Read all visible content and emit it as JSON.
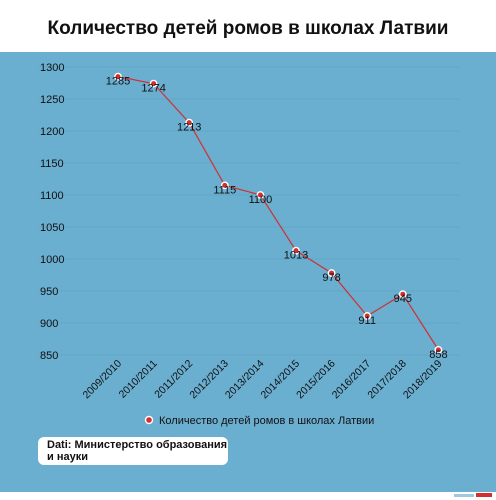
{
  "title": "Количество детей ромов в школах Латвии",
  "source": "Dati: Министерство образования и науки",
  "colors": {
    "background": "#6aaed0",
    "line": "#d32f2f",
    "marker_fill": "#d32f2f",
    "marker_stroke": "#ffffff",
    "text": "#111111",
    "grid": "#5a9ec0"
  },
  "chart_data": {
    "type": "line",
    "title": "Количество детей ромов в школах Латвии",
    "categories": [
      "2009/2010",
      "2010/2011",
      "2011/2012",
      "2012/2013",
      "2013/2014",
      "2014/2015",
      "2015/2016",
      "2016/2017",
      "2017/2018",
      "2018/2019"
    ],
    "series": [
      {
        "name": "Количество детей ромов в школах Латвии",
        "values": [
          1285,
          1274,
          1213,
          1115,
          1100,
          1013,
          978,
          911,
          945,
          858
        ]
      }
    ],
    "ylim": [
      850,
      1300
    ],
    "yticks": [
      1300,
      1250,
      1200,
      1150,
      1100,
      1050,
      1000,
      950,
      900,
      850
    ],
    "grid": true,
    "legend": "bottom"
  }
}
